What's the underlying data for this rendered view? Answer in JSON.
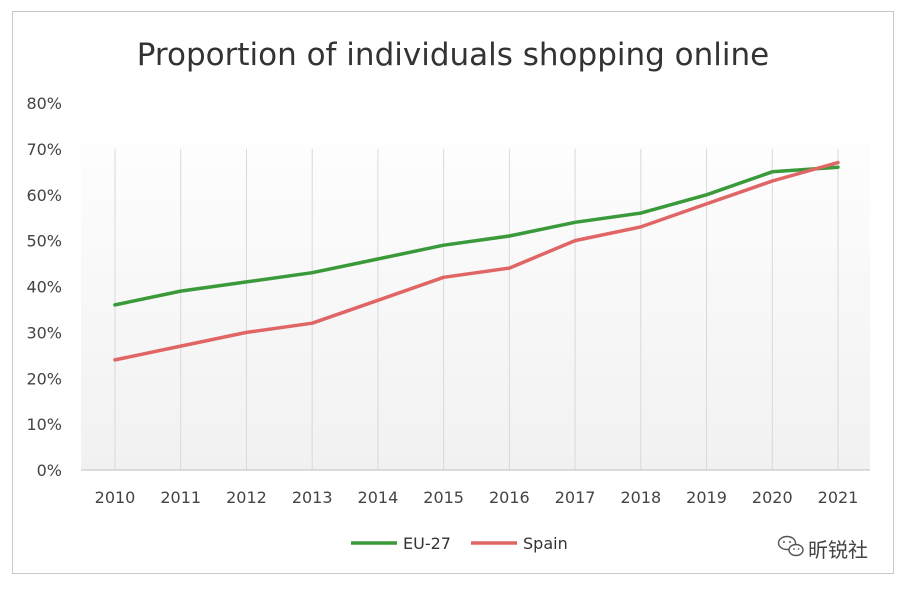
{
  "chart_data": {
    "type": "line",
    "title": "Proportion of individuals shopping online",
    "xlabel": "",
    "ylabel": "",
    "categories": [
      "2010",
      "2011",
      "2012",
      "2013",
      "2014",
      "2015",
      "2016",
      "2017",
      "2018",
      "2019",
      "2020",
      "2021"
    ],
    "ylim": [
      0,
      80
    ],
    "y_ticks": [
      0,
      10,
      20,
      30,
      40,
      50,
      60,
      70,
      80
    ],
    "y_tick_labels": [
      "0%",
      "10%",
      "20%",
      "30%",
      "40%",
      "50%",
      "60%",
      "70%",
      "80%"
    ],
    "grid": "vertical",
    "legend_position": "bottom",
    "series": [
      {
        "name": "EU-27",
        "color": "#3a9a3a",
        "values": [
          36,
          39,
          41,
          43,
          46,
          49,
          51,
          54,
          56,
          60,
          65,
          66
        ]
      },
      {
        "name": "Spain",
        "color": "#e06666",
        "values": [
          24,
          27,
          30,
          32,
          37,
          42,
          44,
          50,
          53,
          58,
          63,
          67
        ]
      }
    ]
  },
  "watermark": {
    "text": "昕锐社",
    "icon": "wechat-icon"
  }
}
